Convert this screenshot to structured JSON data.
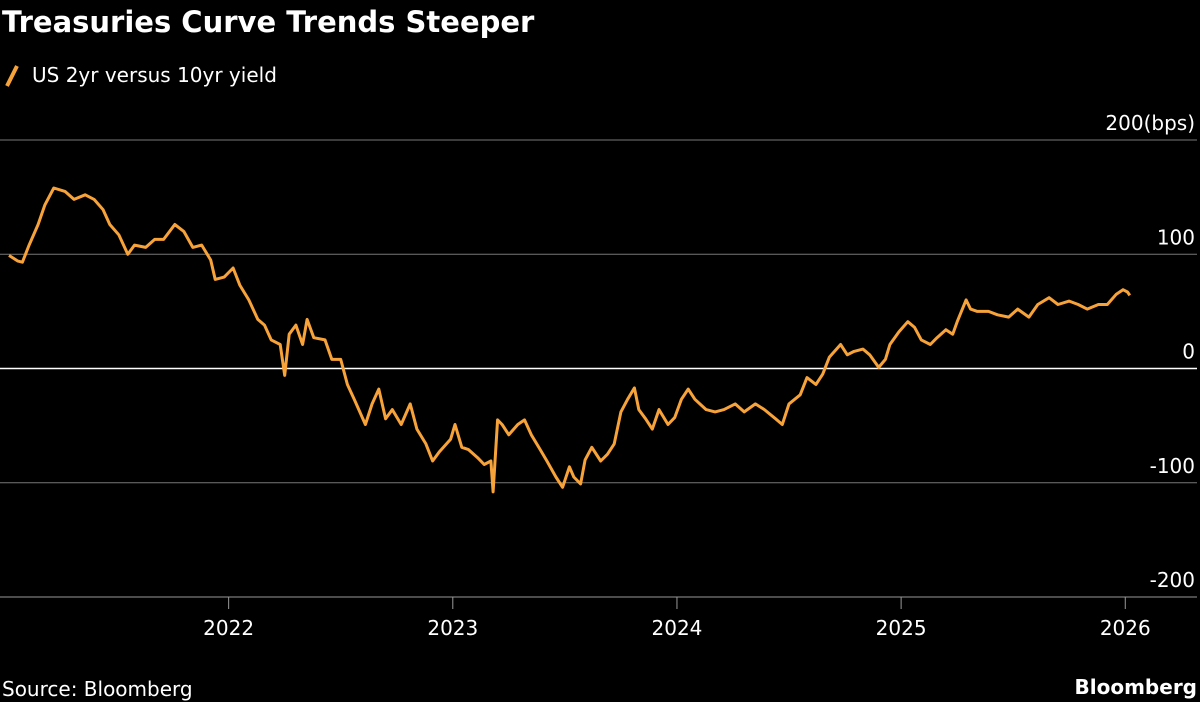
{
  "chart_data": {
    "type": "line",
    "title": "Treasuries Curve Trends Steeper",
    "source": "Source: Bloomberg",
    "brand": "Bloomberg",
    "x": [
      2021.02,
      2021.06,
      2021.08,
      2021.11,
      2021.15,
      2021.18,
      2021.22,
      2021.27,
      2021.31,
      2021.36,
      2021.4,
      2021.44,
      2021.47,
      2021.51,
      2021.55,
      2021.58,
      2021.63,
      2021.67,
      2021.71,
      2021.76,
      2021.8,
      2021.84,
      2021.88,
      2021.92,
      2021.94,
      2021.98,
      2022.02,
      2022.05,
      2022.09,
      2022.13,
      2022.16,
      2022.19,
      2022.23,
      2022.25,
      2022.27,
      2022.3,
      2022.33,
      2022.35,
      2022.38,
      2022.43,
      2022.46,
      2022.5,
      2022.53,
      2022.56,
      2022.61,
      2022.64,
      2022.67,
      2022.7,
      2022.73,
      2022.77,
      2022.81,
      2022.84,
      2022.88,
      2022.91,
      2022.94,
      2022.99,
      2023.01,
      2023.04,
      2023.07,
      2023.11,
      2023.14,
      2023.17,
      2023.18,
      2023.2,
      2023.22,
      2023.25,
      2023.29,
      2023.32,
      2023.35,
      2023.39,
      2023.42,
      2023.46,
      2023.49,
      2023.52,
      2023.54,
      2023.57,
      2023.59,
      2023.62,
      2023.66,
      2023.69,
      2023.72,
      2023.75,
      2023.78,
      2023.81,
      2023.83,
      2023.86,
      2023.89,
      2023.92,
      2023.96,
      2023.99,
      2024.02,
      2024.05,
      2024.08,
      2024.13,
      2024.17,
      2024.21,
      2024.26,
      2024.3,
      2024.35,
      2024.39,
      2024.44,
      2024.47,
      2024.5,
      2024.55,
      2024.58,
      2024.62,
      2024.65,
      2024.68,
      2024.73,
      2024.76,
      2024.79,
      2024.83,
      2024.86,
      2024.9,
      2024.93,
      2024.95,
      2024.99,
      2025.03,
      2025.06,
      2025.09,
      2025.13,
      2025.16,
      2025.2,
      2025.23,
      2025.25,
      2025.29,
      2025.31,
      2025.34,
      2025.39,
      2025.43,
      2025.48,
      2025.52,
      2025.57,
      2025.61,
      2025.66,
      2025.7,
      2025.75,
      2025.79,
      2025.83,
      2025.88,
      2025.92,
      2025.96,
      2025.99,
      2026.01,
      2026.02
    ],
    "series": [
      {
        "name": "US 2yr versus 10yr yield",
        "color": "#f7a33a",
        "values": [
          99,
          94,
          93,
          108,
          126,
          143,
          158,
          155,
          148,
          152,
          148,
          139,
          126,
          117,
          100,
          108,
          106,
          113,
          113,
          126,
          120,
          106,
          108,
          95,
          78,
          80,
          88,
          73,
          60,
          43,
          38,
          25,
          21,
          -6,
          30,
          38,
          21,
          43,
          27,
          25,
          8,
          8,
          -14,
          -27,
          -49,
          -31,
          -18,
          -44,
          -36,
          -49,
          -31,
          -53,
          -66,
          -81,
          -73,
          -62,
          -49,
          -69,
          -71,
          -78,
          -84,
          -81,
          -108,
          -45,
          -49,
          -58,
          -49,
          -45,
          -58,
          -71,
          -81,
          -95,
          -104,
          -86,
          -95,
          -101,
          -80,
          -69,
          -81,
          -75,
          -66,
          -38,
          -27,
          -17,
          -36,
          -44,
          -53,
          -36,
          -49,
          -43,
          -27,
          -18,
          -27,
          -36,
          -38,
          -36,
          -31,
          -38,
          -31,
          -36,
          -44,
          -49,
          -31,
          -23,
          -8,
          -14,
          -5,
          10,
          21,
          12,
          15,
          17,
          12,
          1,
          8,
          21,
          32,
          41,
          36,
          25,
          21,
          27,
          34,
          30,
          41,
          60,
          52,
          50,
          50,
          47,
          45,
          52,
          45,
          56,
          62,
          56,
          59,
          56,
          52,
          56,
          56,
          65,
          69,
          67,
          64
        ]
      }
    ],
    "xlim": [
      2020.98,
      2026.32
    ],
    "xticks": [
      2022,
      2023,
      2024,
      2025,
      2026
    ],
    "ylim": [
      -200,
      200
    ],
    "yticks": [
      -200,
      -100,
      0,
      {
        "value": 200,
        "label": "200(bps)"
      },
      100
    ],
    "grid": true
  }
}
